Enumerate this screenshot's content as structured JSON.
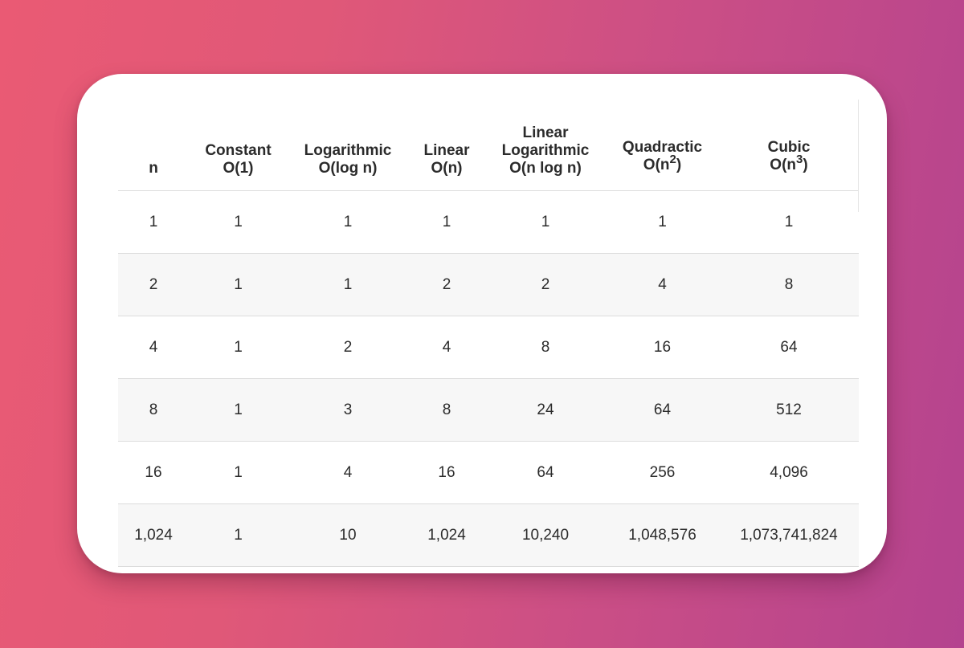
{
  "table": {
    "headers": [
      {
        "lines": [
          "n"
        ]
      },
      {
        "lines": [
          "Constant",
          "O(1)"
        ]
      },
      {
        "lines": [
          "Logarithmic",
          "O(log n)"
        ]
      },
      {
        "lines": [
          "Linear",
          "O(n)"
        ]
      },
      {
        "lines": [
          "Linear",
          "Logarithmic",
          "O(n log n)"
        ]
      },
      {
        "lines": [
          "Quadractic"
        ],
        "formula_prefix": "O(n",
        "exponent": "2",
        "formula_suffix": ")"
      },
      {
        "lines": [
          "Cubic"
        ],
        "formula_prefix": "O(n",
        "exponent": "3",
        "formula_suffix": ")"
      }
    ],
    "rows": [
      [
        "1",
        "1",
        "1",
        "1",
        "1",
        "1",
        "1"
      ],
      [
        "2",
        "1",
        "1",
        "2",
        "2",
        "4",
        "8"
      ],
      [
        "4",
        "1",
        "2",
        "4",
        "8",
        "16",
        "64"
      ],
      [
        "8",
        "1",
        "3",
        "8",
        "24",
        "64",
        "512"
      ],
      [
        "16",
        "1",
        "4",
        "16",
        "64",
        "256",
        "4,096"
      ],
      [
        "1,024",
        "1",
        "10",
        "1,024",
        "10,240",
        "1,048,576",
        "1,073,741,824"
      ]
    ]
  }
}
